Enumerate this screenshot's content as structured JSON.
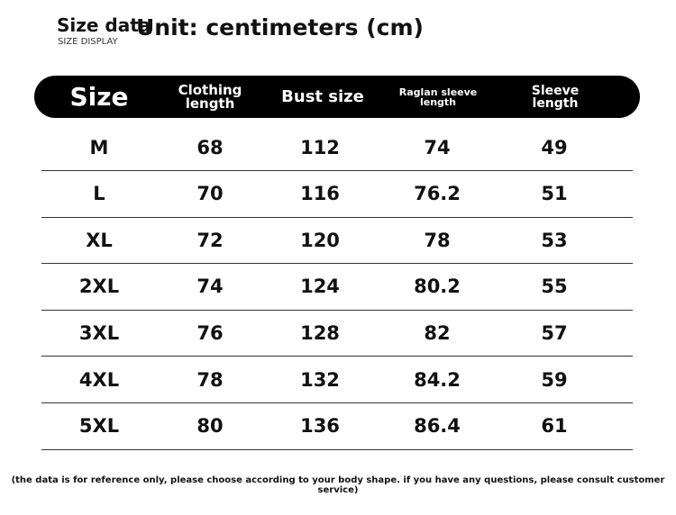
{
  "title": {
    "main": "Size data",
    "sub": "SIZE DISPLAY",
    "unit": "Unit: centimeters (cm)"
  },
  "columns": [
    "Size",
    "Clothing length",
    "Bust size",
    "Raglan sleeve length",
    "Sleeve length"
  ],
  "rows": [
    [
      "M",
      "68",
      "112",
      "74",
      "49"
    ],
    [
      "L",
      "70",
      "116",
      "76.2",
      "51"
    ],
    [
      "XL",
      "72",
      "120",
      "78",
      "53"
    ],
    [
      "2XL",
      "74",
      "124",
      "80.2",
      "55"
    ],
    [
      "3XL",
      "76",
      "128",
      "82",
      "57"
    ],
    [
      "4XL",
      "78",
      "132",
      "84.2",
      "59"
    ],
    [
      "5XL",
      "80",
      "136",
      "86.4",
      "61"
    ]
  ],
  "note": "(the data is for reference only, please choose according to your body shape. if you have any questions, please consult customer service)"
}
